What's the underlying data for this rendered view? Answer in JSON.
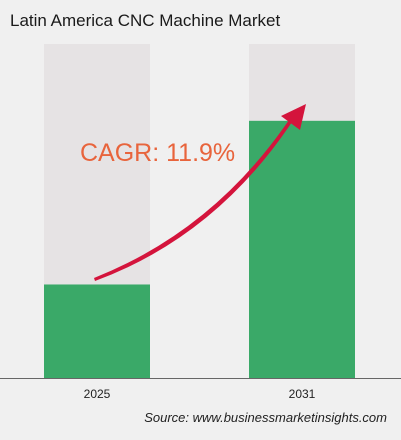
{
  "chart_data": {
    "type": "bar",
    "title": "Latin America CNC Machine Market",
    "categories": [
      "2025",
      "2031"
    ],
    "values": [
      0.28,
      0.77
    ],
    "ylim": [
      0,
      1
    ],
    "grid": false,
    "annotation": "CAGR: 11.9%",
    "colors": {
      "bar_fill": "#3aa968",
      "bar_background": "#e6e3e4",
      "arrow": "#d4143c",
      "annotation_text": "#e8643c",
      "axis": "#666666",
      "background": "#f0f0f0"
    }
  },
  "footer": {
    "source_label": "Source:",
    "source_url": "www.businessmarketinsights.com"
  }
}
